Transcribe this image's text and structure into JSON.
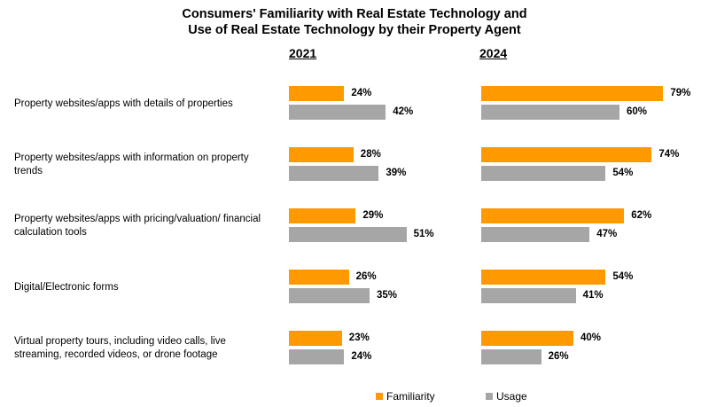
{
  "chart_data": {
    "type": "bar",
    "orientation": "horizontal",
    "title_lines": [
      "Consumers' Familiarity with Real Estate Technology and",
      "Use of Real Estate Technology by their Property Agent"
    ],
    "panels": [
      "2021",
      "2024"
    ],
    "categories": [
      [
        "Property websites/apps with details of properties"
      ],
      [
        "Property websites/apps with information on property",
        "trends"
      ],
      [
        "Property websites/apps with pricing/valuation/ financial",
        "calculation tools"
      ],
      [
        "Digital/Electronic forms"
      ],
      [
        "Virtual property tours, including video calls, live",
        "streaming, recorded videos, or drone footage"
      ]
    ],
    "series": [
      {
        "name": "Familiarity",
        "color": "#FF9900",
        "values": {
          "2021": [
            24,
            28,
            29,
            26,
            23
          ],
          "2024": [
            79,
            74,
            62,
            54,
            40
          ]
        }
      },
      {
        "name": "Usage",
        "color": "#A6A6A6",
        "values": {
          "2021": [
            42,
            39,
            51,
            35,
            24
          ],
          "2024": [
            60,
            54,
            47,
            41,
            26
          ]
        }
      }
    ],
    "value_suffix": "%",
    "legend": [
      "Familiarity",
      "Usage"
    ],
    "legend_position": "bottom-center"
  }
}
